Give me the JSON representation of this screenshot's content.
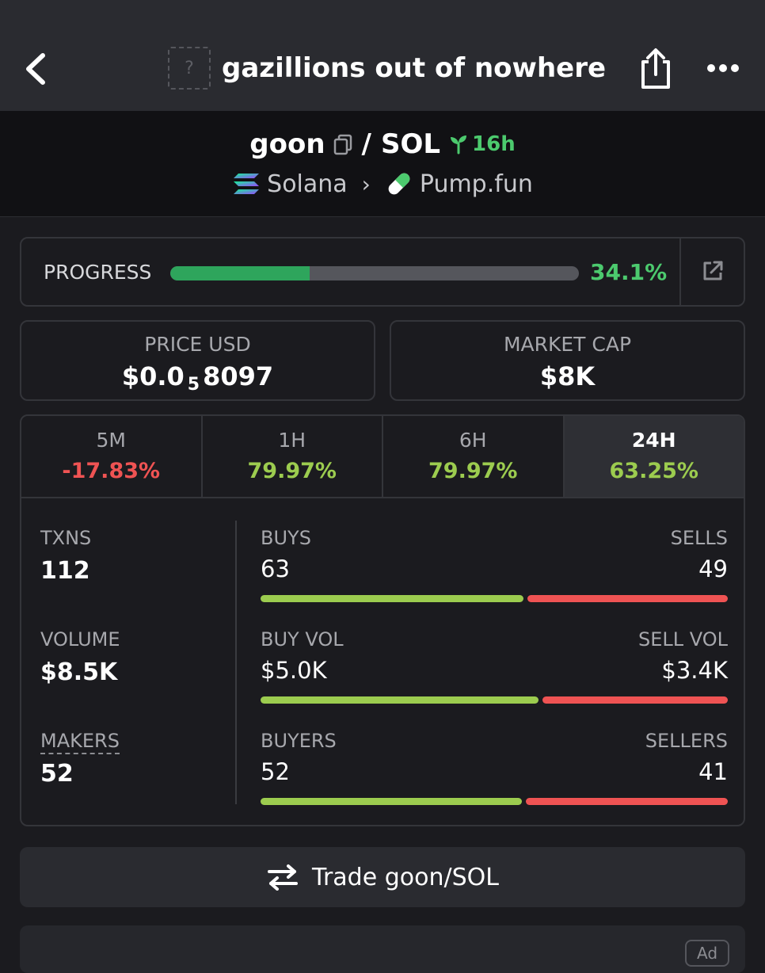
{
  "header": {
    "title": "gazillions out of nowhere",
    "token_image_placeholder": "?"
  },
  "pair": {
    "base": "goon",
    "separator": "/",
    "quote": "SOL",
    "age": "16h",
    "chain": "Solana",
    "dex": "Pump.fun"
  },
  "progress": {
    "label": "PROGRESS",
    "value_text": "34.1%",
    "fraction": 0.341
  },
  "metrics": {
    "price_label": "PRICE USD",
    "price_prefix": "$0.0",
    "price_zeros": "5",
    "price_digits": "8097",
    "mcap_label": "MARKET CAP",
    "mcap_value": "$8K"
  },
  "tabs": [
    {
      "label": "5M",
      "value": "-17.83%",
      "color": "#ef5353"
    },
    {
      "label": "1H",
      "value": "79.97%",
      "color": "#9ccc4f"
    },
    {
      "label": "6H",
      "value": "79.97%",
      "color": "#9ccc4f"
    },
    {
      "label": "24H",
      "value": "63.25%",
      "color": "#9ccc4f"
    }
  ],
  "stats": {
    "txns_label": "TXNS",
    "txns_value": "112",
    "volume_label": "VOLUME",
    "volume_value": "$8.5K",
    "makers_label": "MAKERS",
    "makers_value": "52",
    "buys_label": "BUYS",
    "buys_value": "63",
    "sells_label": "SELLS",
    "sells_value": "49",
    "buys_fraction": 0.5625,
    "buy_vol_label": "BUY VOL",
    "buy_vol_value": "$5.0K",
    "sell_vol_label": "SELL VOL",
    "sell_vol_value": "$3.4K",
    "buy_vol_fraction": 0.595,
    "buyers_label": "BUYERS",
    "buyers_value": "52",
    "sellers_label": "SELLERS",
    "sellers_value": "41",
    "buyers_fraction": 0.559
  },
  "trade_button": {
    "label": "Trade goon/SOL"
  },
  "bottom": {
    "ad_badge": "Ad"
  },
  "colors": {
    "green": "#4cca6e",
    "buy_green": "#9ccc4f",
    "sell_red": "#ef5353",
    "progress_green": "#2ea55c"
  },
  "icons": [
    "back-arrow-icon",
    "share-icon",
    "more-dots-icon",
    "copy-icon",
    "seedling-icon",
    "solana-icon",
    "chevron-right-icon",
    "pill-icon",
    "external-link-icon",
    "swap-arrows-icon"
  ]
}
